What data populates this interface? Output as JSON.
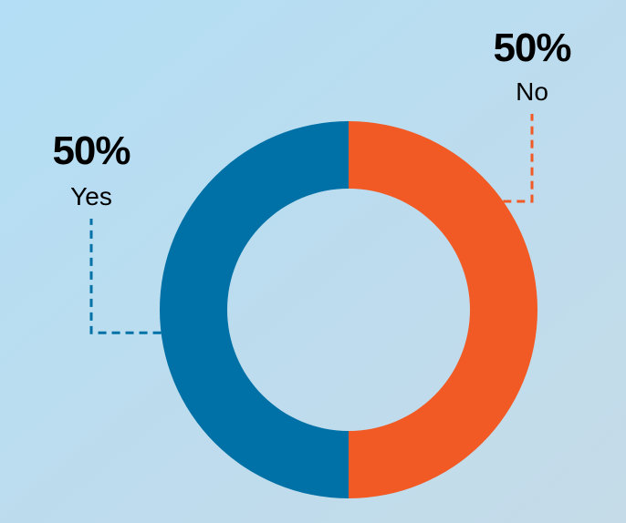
{
  "chart_data": {
    "type": "pie",
    "donut": true,
    "categories": [
      "No",
      "Yes"
    ],
    "values": [
      50,
      50
    ],
    "value_labels": [
      "50%",
      "50%"
    ],
    "colors": [
      "#f15a24",
      "#0071a6"
    ]
  }
}
